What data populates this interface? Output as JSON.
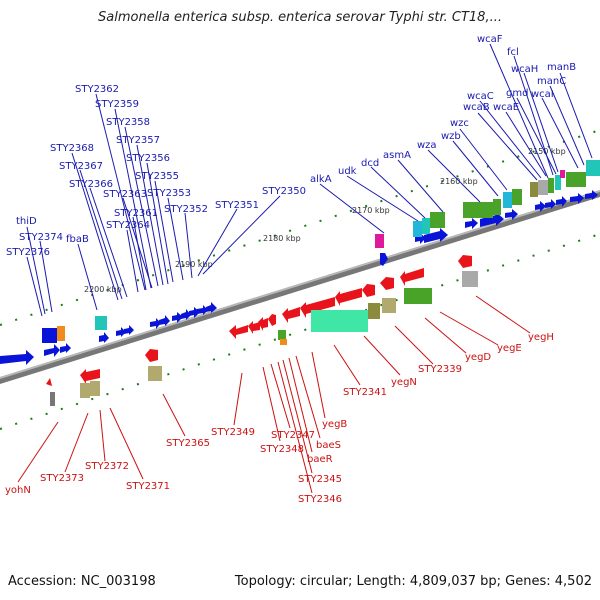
{
  "title": "Salmonella enterica subsp. enterica serovar Typhi str. CT18,...",
  "footer": {
    "accession": "Accession: NC_003198",
    "summary": "Topology: circular; Length: 4,809,037 bp; Genes: 4,502"
  },
  "colors": {
    "forward_gene": "#0a14d8",
    "reverse_gene": "#e8131b",
    "forward_label": "#1a1ab0",
    "reverse_label": "#cc1111",
    "backbone": "#777777",
    "tick": "#1d7a1d",
    "cog_green": "#4aa329",
    "cog_olive": "#8c8a3c",
    "cog_khaki": "#b2a96e",
    "cog_teal": "#22c6b8",
    "cog_mint": "#3fe6a6",
    "cog_cyan": "#22b6d9",
    "cog_orange": "#f08c1a",
    "cog_magenta": "#e0189a",
    "cog_grey": "#a9a9a9"
  },
  "scale_labels": [
    "2150 kbp",
    "2160 kbp",
    "2170 kbp",
    "2180 kbp",
    "2190 kbp",
    "2200 kbp"
  ],
  "forward_labels": [
    "wcaF",
    "fcl",
    "wcaH",
    "manB",
    "gmd",
    "manC",
    "wcaC",
    "wcaB",
    "wcaE",
    "wcaI",
    "wzc",
    "wzb",
    "wza",
    "asmA",
    "dcd",
    "udk",
    "alkA",
    "STY2350",
    "STY2351",
    "STY2352",
    "STY2353",
    "STY2355",
    "STY2356",
    "STY2357",
    "STY2358",
    "STY2359",
    "STY2362",
    "STY2368",
    "STY2367",
    "STY2366",
    "STY2363",
    "STY2361",
    "STY2364",
    "thiD",
    "STY2374",
    "fbaB",
    "STY2376"
  ],
  "reverse_labels": [
    "yegH",
    "yegE",
    "yegD",
    "STY2339",
    "yegN",
    "STY2341",
    "yegB",
    "baeS",
    "baeR",
    "STY2345",
    "STY2346",
    "STY2347",
    "STY2348",
    "STY2349",
    "STY2365",
    "STY2371",
    "STY2372",
    "STY2373",
    "yohN"
  ]
}
